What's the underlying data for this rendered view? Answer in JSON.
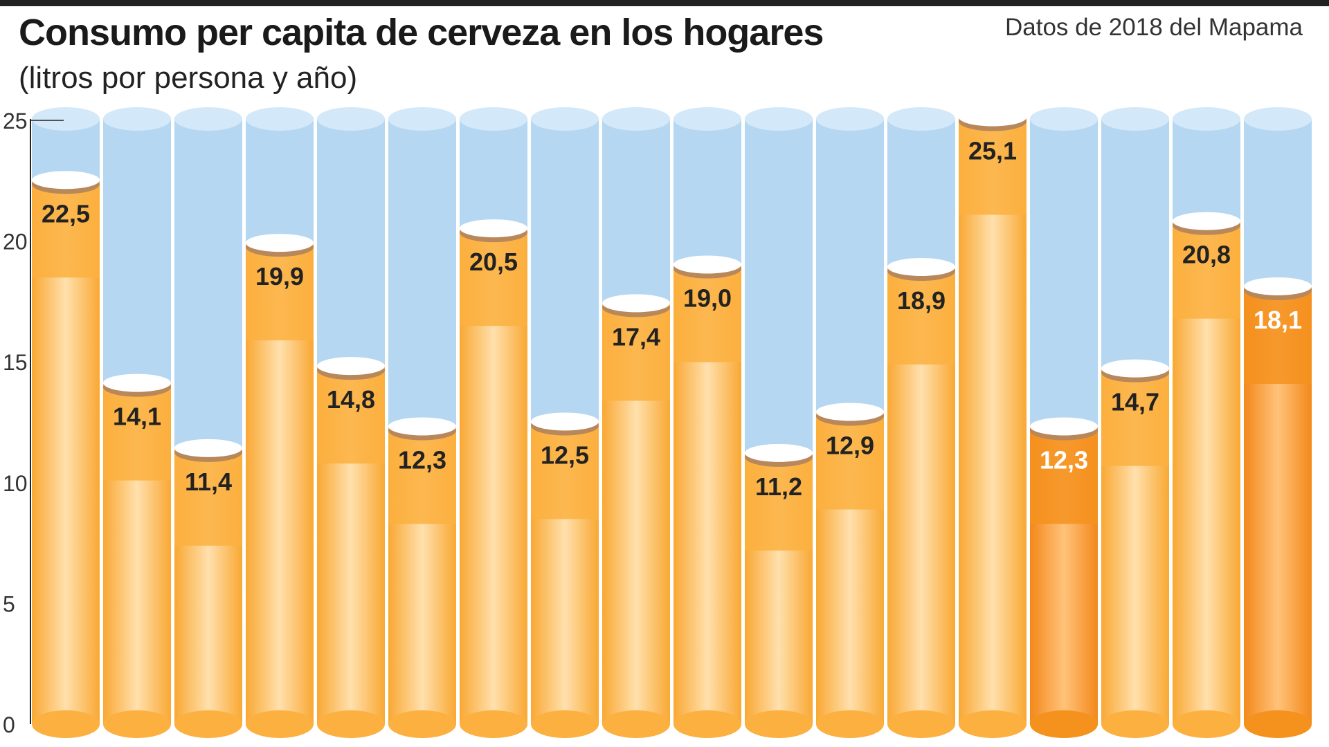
{
  "header": {
    "title": "Consumo per capita de cerveza en los hogares",
    "subtitle": "(litros por persona y año)",
    "source": "Datos de 2018 del Mapama"
  },
  "chart_data": {
    "type": "bar",
    "title": "Consumo per capita de cerveza en los hogares",
    "subtitle": "(litros por persona y año)",
    "ylim": [
      0,
      25
    ],
    "yticks": [
      "0",
      "5",
      "10",
      "15",
      "20",
      "25"
    ],
    "values": [
      22.5,
      14.1,
      11.4,
      19.9,
      14.8,
      12.3,
      20.5,
      12.5,
      17.4,
      19.0,
      11.2,
      12.9,
      18.9,
      25.1,
      12.3,
      14.7,
      20.8,
      18.1
    ],
    "labels": [
      "22,5",
      "14,1",
      "11,4",
      "19,9",
      "14,8",
      "12,3",
      "20,5",
      "12,5",
      "17,4",
      "19,0",
      "11,2",
      "12,9",
      "18,9",
      "25,1",
      "12,3",
      "14,7",
      "20,8",
      "18,1"
    ],
    "highlighted": [
      14,
      17
    ],
    "grid": false,
    "colors": {
      "bar": "#fbb040",
      "bar_highlight": "#f5921e",
      "bar_shine": "#ffe2b0",
      "empty_tube": "#b5d7f1",
      "tube_top": "#d3e8f8",
      "foam": "#ffffff",
      "foam_rim": "#b8875a",
      "label": "#222222",
      "label_highlight": "#ffffff"
    }
  }
}
